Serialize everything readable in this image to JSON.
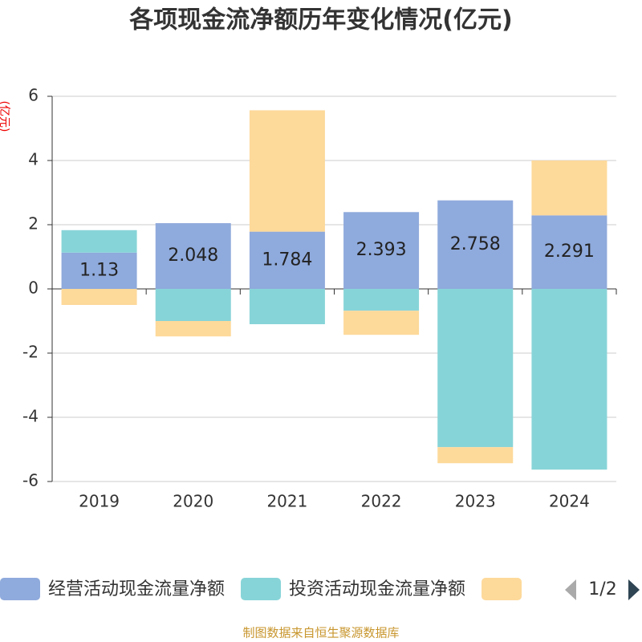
{
  "chart_data": {
    "type": "bar",
    "stacked": true,
    "title": "各项现金流净额历年变化情况(亿元)",
    "y_label": "(亿元)",
    "categories": [
      "2019",
      "2020",
      "2021",
      "2022",
      "2023",
      "2024"
    ],
    "series": [
      {
        "name": "经营活动现金流量净额",
        "color": "#8faadc",
        "values": [
          1.13,
          2.048,
          1.784,
          2.393,
          2.758,
          2.291
        ],
        "labels": true
      },
      {
        "name": "投资活动现金流量净额",
        "color": "#87d4d8",
        "values": [
          0.7,
          -1.0,
          -1.1,
          -0.68,
          -4.93,
          -5.63
        ]
      },
      {
        "name": null,
        "color": "#fdd99a",
        "values": [
          -0.5,
          -0.48,
          3.78,
          -0.75,
          -0.5,
          1.71
        ]
      }
    ],
    "ylim": [
      -6,
      6
    ],
    "yticks": [
      -6,
      -4,
      -2,
      0,
      2,
      4,
      6
    ],
    "grid": true,
    "legend_page": "1/2",
    "source": "制图数据来自恒生聚源数据库"
  }
}
